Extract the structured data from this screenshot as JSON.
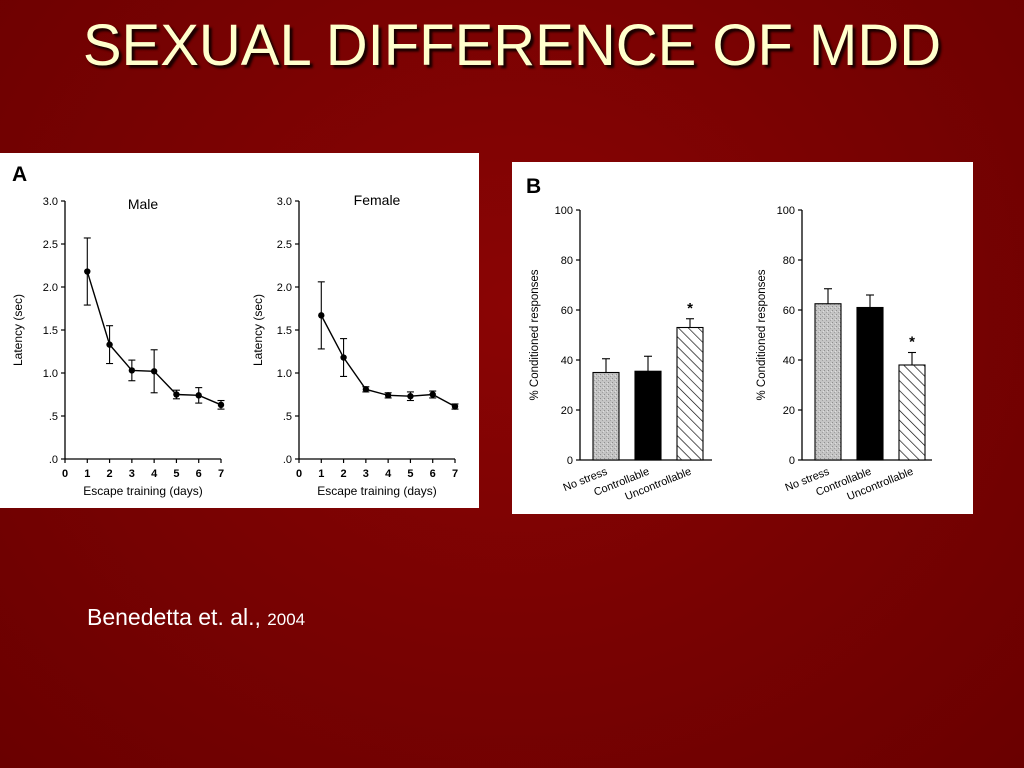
{
  "slide": {
    "title": "SEXUAL DIFFERENCE OF MDD",
    "citation": {
      "author": "Benedetta et. al., ",
      "year": "2004"
    }
  },
  "chart_data": [
    {
      "panel": "A",
      "type": "line",
      "title": "Male",
      "xlabel": "Escape training (days)",
      "ylabel": "Latency (sec)",
      "xticks": [
        "0",
        "1",
        "2",
        "3",
        "4",
        "5",
        "6",
        "7"
      ],
      "yticks": [
        ".0",
        ".5",
        "1.0",
        "1.5",
        "2.0",
        "2.5",
        "3.0"
      ],
      "xlim": [
        0,
        7
      ],
      "ylim": [
        0,
        3
      ],
      "x": [
        1,
        2,
        3,
        4,
        5,
        6,
        7
      ],
      "y": [
        2.18,
        1.33,
        1.03,
        1.02,
        0.75,
        0.74,
        0.63
      ],
      "error": [
        0.39,
        0.22,
        0.12,
        0.25,
        0.05,
        0.09,
        0.05
      ]
    },
    {
      "panel": "A",
      "type": "line",
      "title": "Female",
      "xlabel": "Escape training (days)",
      "ylabel": "Latency (sec)",
      "xticks": [
        "0",
        "1",
        "2",
        "3",
        "4",
        "5",
        "6",
        "7"
      ],
      "yticks": [
        ".0",
        ".5",
        "1.0",
        "1.5",
        "2.0",
        "2.5",
        "3.0"
      ],
      "xlim": [
        0,
        7
      ],
      "ylim": [
        0,
        3
      ],
      "x": [
        1,
        2,
        3,
        4,
        5,
        6,
        7
      ],
      "y": [
        1.67,
        1.18,
        0.81,
        0.74,
        0.73,
        0.75,
        0.61
      ],
      "error": [
        0.39,
        0.22,
        0.03,
        0.03,
        0.05,
        0.04,
        0.03
      ]
    },
    {
      "panel": "B",
      "type": "bar",
      "title": "",
      "ylabel": "% Conditioned responses",
      "categories": [
        "No stress",
        "Controllable",
        "Uncontrollable"
      ],
      "values": [
        35,
        35.5,
        53
      ],
      "error": [
        5.5,
        6,
        3.5
      ],
      "yticks": [
        "0",
        "20",
        "40",
        "60",
        "80",
        "100"
      ],
      "ylim": [
        0,
        100
      ],
      "annotation": "*",
      "annotation_category": "Uncontrollable"
    },
    {
      "panel": "B",
      "type": "bar",
      "title": "",
      "ylabel": "% Conditioned responses",
      "categories": [
        "No stress",
        "Controllable",
        "Uncontrollable"
      ],
      "values": [
        62.5,
        61,
        38
      ],
      "error": [
        6,
        5,
        5
      ],
      "yticks": [
        "0",
        "20",
        "40",
        "60",
        "80",
        "100"
      ],
      "ylim": [
        0,
        100
      ],
      "annotation": "*",
      "annotation_category": "Uncontrollable"
    }
  ],
  "panel_labels": [
    "A",
    "B"
  ],
  "bar_styles": [
    {
      "category": "No stress",
      "fill": "#c2c2c2",
      "pattern": "speckle"
    },
    {
      "category": "Controllable",
      "fill": "#000000",
      "pattern": "solid"
    },
    {
      "category": "Uncontrollable",
      "fill": "#ffffff",
      "pattern": "hatch"
    }
  ],
  "colors": {
    "background": "#7a0202",
    "title": "#ffffcc",
    "citation": "#ffffff"
  }
}
